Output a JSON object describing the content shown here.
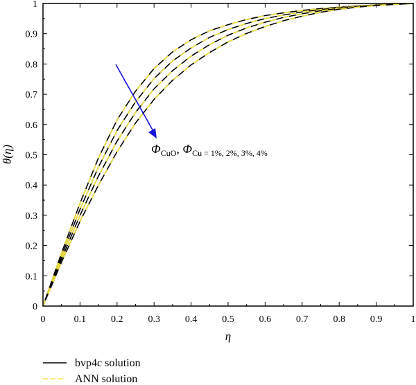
{
  "chart_data": {
    "type": "line",
    "xlabel": "η",
    "ylabel": "θ(η)",
    "xlim": [
      0,
      1
    ],
    "ylim": [
      0,
      1
    ],
    "x_ticks": [
      "0",
      "0.1",
      "0.2",
      "0.3",
      "0.4",
      "0.5",
      "0.6",
      "0.7",
      "0.8",
      "0.9",
      "1"
    ],
    "y_ticks": [
      "0",
      "0.1",
      "0.2",
      "0.3",
      "0.4",
      "0.5",
      "0.6",
      "0.7",
      "0.8",
      "0.9",
      "1"
    ],
    "x": [
      0,
      0.05,
      0.1,
      0.15,
      0.2,
      0.25,
      0.3,
      0.35,
      0.4,
      0.45,
      0.5,
      0.55,
      0.6,
      0.65,
      0.7,
      0.75,
      0.8,
      0.85,
      0.9,
      0.95,
      1.0
    ],
    "series": [
      {
        "values": [
          0,
          0.175,
          0.34,
          0.49,
          0.615,
          0.71,
          0.785,
          0.84,
          0.88,
          0.91,
          0.93,
          0.947,
          0.96,
          0.969,
          0.977,
          0.983,
          0.988,
          0.992,
          0.995,
          0.998,
          1.0
        ]
      },
      {
        "values": [
          0,
          0.165,
          0.32,
          0.46,
          0.58,
          0.675,
          0.752,
          0.81,
          0.853,
          0.888,
          0.914,
          0.934,
          0.95,
          0.962,
          0.972,
          0.98,
          0.986,
          0.991,
          0.995,
          0.998,
          1.0
        ]
      },
      {
        "values": [
          0,
          0.155,
          0.3,
          0.43,
          0.545,
          0.64,
          0.718,
          0.778,
          0.826,
          0.864,
          0.895,
          0.919,
          0.938,
          0.954,
          0.966,
          0.976,
          0.984,
          0.99,
          0.994,
          0.997,
          1.0
        ]
      },
      {
        "values": [
          0,
          0.145,
          0.28,
          0.4,
          0.51,
          0.605,
          0.683,
          0.746,
          0.797,
          0.838,
          0.873,
          0.901,
          0.924,
          0.943,
          0.958,
          0.971,
          0.981,
          0.988,
          0.993,
          0.997,
          1.0
        ]
      }
    ],
    "annotation": {
      "text_phi1": "Φ",
      "sub1": "CuO",
      "comma": ", ",
      "text_phi2": "Φ",
      "sub2": "Cu",
      "values": " = 1%, 2%, 3%, 4%"
    },
    "legend": [
      {
        "label": "bvp4c solution",
        "style": "solid",
        "color": "#000000"
      },
      {
        "label": "ANN solution",
        "style": "dashed",
        "color": "#f5e63c"
      }
    ],
    "legend_position": "bottom-left",
    "colors": {
      "line": "#000000",
      "ann": "#f5e63c",
      "arrow": "#1414d8"
    }
  }
}
